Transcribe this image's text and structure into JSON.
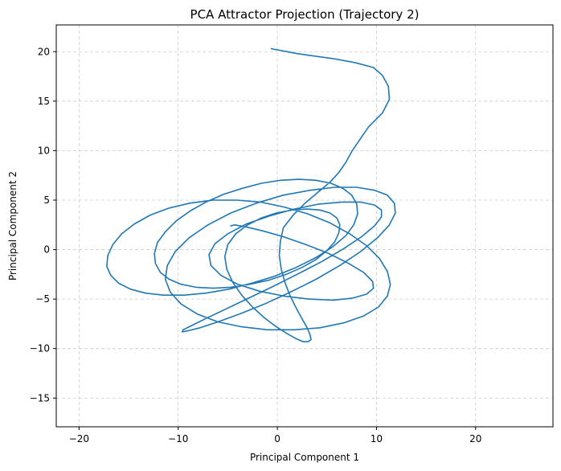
{
  "chart_data": {
    "type": "line",
    "title": "PCA Attractor Projection (Trajectory 2)",
    "xlabel": "Principal Component 1",
    "ylabel": "Principal Component 2",
    "xlim": [
      -22.3,
      27.8
    ],
    "ylim": [
      -17.9,
      22.7
    ],
    "xticks": [
      -20,
      -10,
      0,
      10,
      20
    ],
    "yticks": [
      -15,
      -10,
      -5,
      0,
      5,
      10,
      15,
      20
    ],
    "grid": true,
    "legend": "none",
    "series": [
      {
        "color": "#1f77b4",
        "x": [
          -0.6,
          2.0,
          5.6,
          7.8,
          9.7,
          10.6,
          11.2,
          11.3,
          10.6,
          9.2,
          8.3,
          7.5,
          6.9,
          6.2,
          5.3,
          4.1,
          2.8,
          1.6,
          0.6,
          0.3,
          0.2,
          0.4,
          0.8,
          1.3,
          1.9,
          2.5,
          3.0,
          3.3,
          3.4,
          3.1,
          2.6,
          1.9,
          1.0,
          -0.1,
          -1.3,
          -2.5,
          -3.6,
          -4.5,
          -5.1,
          -5.3,
          -5.0,
          -4.2,
          -3.0,
          -1.6,
          -0.1,
          1.5,
          3.0,
          4.3,
          5.3,
          6.0,
          6.3,
          6.2,
          5.8,
          5.0,
          3.9,
          2.5,
          0.9,
          -0.9,
          -2.8,
          -4.7,
          -6.5,
          -8.2,
          -9.7,
          -10.9,
          -11.8,
          -12.3,
          -12.4,
          -12.1,
          -11.3,
          -10.2,
          -8.8,
          -7.2,
          -5.4,
          -3.5,
          -1.6,
          0.3,
          2.2,
          3.9,
          5.4,
          6.6,
          7.5,
          8.0,
          8.1,
          7.7,
          6.9,
          5.6,
          3.9,
          1.9,
          -0.3,
          -2.6,
          -4.9,
          -7.2,
          -9.4,
          -11.5,
          -13.3,
          -14.8,
          -16.0,
          -16.8,
          -17.2,
          -17.1,
          -16.6,
          -15.7,
          -14.4,
          -12.8,
          -10.9,
          -8.8,
          -6.5,
          -4.1,
          -1.7,
          0.7,
          3.1,
          5.3,
          7.3,
          9.0,
          10.3,
          11.1,
          11.4,
          11.1,
          10.2,
          8.7,
          6.7,
          4.3,
          1.7,
          -1.0,
          -3.6,
          -6.0,
          -8.1,
          -9.7,
          -10.8,
          -11.3,
          -11.1,
          -10.3,
          -8.9,
          -7.0,
          -4.7,
          -2.1,
          0.6,
          3.3,
          5.8,
          8.0,
          9.8,
          11.1,
          11.8,
          11.9,
          11.3,
          10.1,
          8.4,
          6.3,
          3.9,
          1.3,
          -1.3,
          -3.8,
          -6.0,
          -7.8,
          -9.0,
          -9.6,
          -9.5,
          -8.7,
          -7.3,
          -5.4,
          -3.1,
          -0.6,
          2.0,
          4.5,
          6.7,
          8.5,
          9.8,
          10.5,
          10.5,
          9.8,
          8.4,
          6.5,
          4.2,
          1.7,
          -0.8,
          -3.1,
          -5.0,
          -6.3,
          -6.9,
          -6.7,
          -5.7,
          -4.0,
          -1.8,
          0.7,
          3.2,
          5.6,
          7.6,
          9.0,
          9.7,
          9.6,
          8.7,
          7.2,
          5.2,
          2.9,
          0.6,
          -1.5,
          -3.2,
          -4.3,
          -4.7
        ],
        "y": [
          20.3,
          19.8,
          19.3,
          18.9,
          18.4,
          17.6,
          16.5,
          15.2,
          13.8,
          12.4,
          11.1,
          9.9,
          8.8,
          7.8,
          6.8,
          5.8,
          4.7,
          3.5,
          2.2,
          0.8,
          -0.6,
          -2.0,
          -3.4,
          -4.7,
          -5.9,
          -7.0,
          -7.9,
          -8.6,
          -9.1,
          -9.3,
          -9.3,
          -9.0,
          -8.5,
          -7.8,
          -6.9,
          -5.8,
          -4.6,
          -3.3,
          -2.0,
          -0.7,
          0.5,
          1.6,
          2.5,
          3.2,
          3.7,
          4.0,
          4.1,
          4.0,
          3.7,
          3.2,
          2.5,
          1.7,
          0.8,
          -0.1,
          -1.0,
          -1.8,
          -2.5,
          -3.1,
          -3.5,
          -3.8,
          -3.9,
          -3.8,
          -3.5,
          -3.0,
          -2.3,
          -1.4,
          -0.4,
          0.7,
          1.8,
          2.9,
          3.9,
          4.8,
          5.6,
          6.2,
          6.7,
          7.0,
          7.1,
          7.0,
          6.7,
          6.2,
          5.5,
          4.6,
          3.6,
          2.5,
          1.4,
          0.3,
          -0.8,
          -1.8,
          -2.7,
          -3.4,
          -4.0,
          -4.4,
          -4.6,
          -4.6,
          -4.4,
          -4.0,
          -3.4,
          -2.6,
          -1.7,
          -0.6,
          0.5,
          1.6,
          2.6,
          3.5,
          4.2,
          4.7,
          5.0,
          5.0,
          4.8,
          4.3,
          3.6,
          2.7,
          1.6,
          0.4,
          -0.9,
          -2.2,
          -3.5,
          -4.7,
          -5.8,
          -6.7,
          -7.4,
          -7.9,
          -8.1,
          -8.1,
          -7.8,
          -7.3,
          -6.5,
          -5.5,
          -4.3,
          -3.0,
          -1.6,
          -0.2,
          1.2,
          2.5,
          3.7,
          4.7,
          5.5,
          6.0,
          6.3,
          6.3,
          6.0,
          5.5,
          4.7,
          3.7,
          2.5,
          1.2,
          -0.2,
          -1.6,
          -3.0,
          -4.3,
          -5.5,
          -6.5,
          -7.3,
          -7.9,
          -8.2,
          -8.3,
          -8.1,
          -7.7,
          -7.0,
          -6.1,
          -5.0,
          -3.8,
          -2.5,
          -1.2,
          0.1,
          1.3,
          2.4,
          3.3,
          4.0,
          4.5,
          4.8,
          4.8,
          4.6,
          4.1,
          3.4,
          2.6,
          1.6,
          0.6,
          -0.5,
          -1.6,
          -2.6,
          -3.5,
          -4.2,
          -4.7,
          -5.0,
          -5.1,
          -4.9,
          -4.5,
          -3.9,
          -3.2,
          -2.3,
          -1.4,
          -0.4,
          0.5,
          1.3,
          1.9,
          2.3,
          2.5,
          2.4
        ]
      }
    ]
  }
}
